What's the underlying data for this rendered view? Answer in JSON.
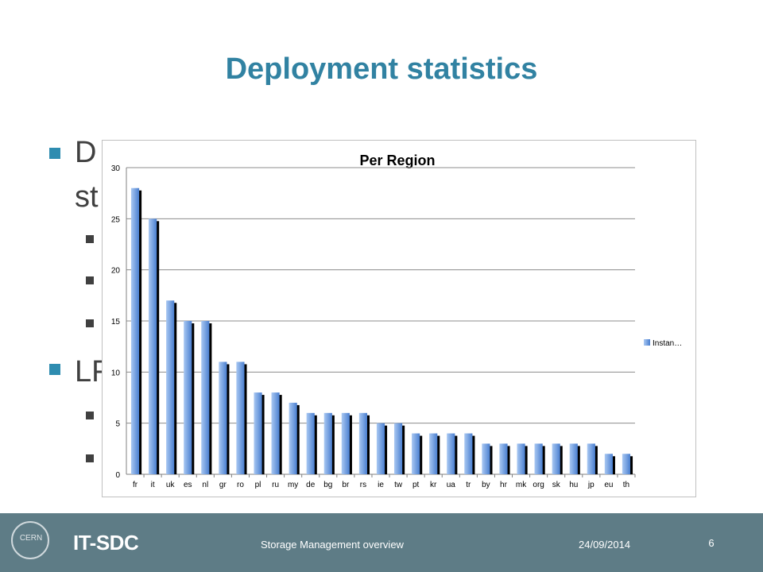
{
  "slide": {
    "title": "Deployment statistics",
    "bullet1_text": "D",
    "bullet1_cont": "st",
    "bullet2_text": "LF"
  },
  "footer": {
    "logo_text": "CERN",
    "brand": "IT-SDC",
    "center_text": "Storage Management overview",
    "date": "24/09/2014",
    "page": "6"
  },
  "chart_data": {
    "type": "bar",
    "title": "Per Region",
    "categories": [
      "fr",
      "it",
      "uk",
      "es",
      "nl",
      "gr",
      "ro",
      "pl",
      "ru",
      "my",
      "de",
      "bg",
      "br",
      "rs",
      "ie",
      "tw",
      "pt",
      "kr",
      "ua",
      "tr",
      "by",
      "hr",
      "mk",
      "org",
      "sk",
      "hu",
      "jp",
      "eu",
      "th"
    ],
    "series": [
      {
        "name": "Instan…",
        "values": [
          28,
          25,
          17,
          15,
          15,
          11,
          11,
          8,
          8,
          7,
          6,
          6,
          6,
          6,
          5,
          5,
          4,
          4,
          4,
          4,
          3,
          3,
          3,
          3,
          3,
          3,
          3,
          2,
          2
        ]
      }
    ],
    "ylim": [
      0,
      30
    ],
    "yticks": [
      0,
      5,
      10,
      15,
      20,
      25,
      30
    ],
    "grid": true,
    "legend": "right",
    "colors": {
      "bar_light": "#a9c8f2",
      "bar_dark": "#4a7fd0",
      "shadow": "#000000",
      "grid": "#8c8c8c"
    }
  }
}
